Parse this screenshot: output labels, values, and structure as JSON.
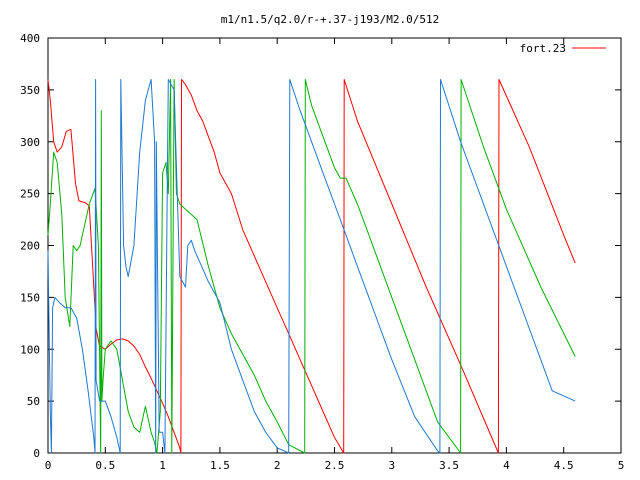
{
  "chart_data": {
    "type": "line",
    "title": "m1/n1.5/q2.0/r-+.37-j193/M2.0/512",
    "xlim": [
      0,
      5
    ],
    "ylim": [
      0,
      400
    ],
    "xticks": [
      0,
      0.5,
      1,
      1.5,
      2,
      2.5,
      3,
      3.5,
      4,
      4.5,
      5
    ],
    "xtick_labels": [
      "0",
      "0.5",
      "1",
      "1.5",
      "2",
      "2.5",
      "3",
      "3.5",
      "4",
      "4.5",
      "5"
    ],
    "yticks": [
      0,
      50,
      100,
      150,
      200,
      250,
      300,
      350,
      400
    ],
    "ytick_labels": [
      "0",
      "50",
      "100",
      "150",
      "200",
      "250",
      "300",
      "350",
      "400"
    ],
    "grid": false,
    "legend_position": "top-right",
    "series": [
      {
        "name": "fort.23",
        "color": "#ff0000",
        "x": [
          0,
          0.02,
          0.05,
          0.08,
          0.12,
          0.16,
          0.2,
          0.24,
          0.27,
          0.3,
          0.33,
          0.36,
          0.4,
          0.41,
          0.42,
          0.45,
          0.5,
          0.55,
          0.6,
          0.65,
          0.7,
          0.75,
          0.8,
          0.85,
          0.9,
          0.95,
          1.0,
          1.05,
          1.1,
          1.15,
          1.16,
          1.165,
          1.2,
          1.25,
          1.3,
          1.35,
          1.4,
          1.45,
          1.5,
          1.6,
          1.7,
          1.8,
          1.9,
          2.0,
          2.1,
          2.2,
          2.3,
          2.4,
          2.5,
          2.58,
          2.585,
          2.7,
          3.0,
          3.3,
          3.6,
          3.93,
          3.935,
          4.2,
          4.5,
          4.6
        ],
        "y": [
          360,
          340,
          300,
          290,
          295,
          310,
          312,
          260,
          243,
          242,
          241,
          238,
          160,
          140,
          120,
          103,
          100,
          105,
          109,
          110,
          108,
          103,
          95,
          83,
          72,
          60,
          48,
          35,
          20,
          5,
          0,
          360,
          355,
          345,
          330,
          320,
          305,
          290,
          270,
          250,
          215,
          190,
          165,
          140,
          115,
          90,
          65,
          40,
          15,
          0,
          360,
          320,
          240,
          160,
          85,
          0,
          360,
          295,
          210,
          183
        ]
      },
      {
        "name": "",
        "color": "#00b000",
        "x": [
          0,
          0.02,
          0.05,
          0.08,
          0.12,
          0.15,
          0.19,
          0.22,
          0.25,
          0.28,
          0.32,
          0.36,
          0.41,
          0.44,
          0.46,
          0.465,
          0.47,
          0.48,
          0.5,
          0.55,
          0.6,
          0.65,
          0.7,
          0.75,
          0.8,
          0.85,
          0.9,
          0.93,
          0.95,
          0.98,
          1.0,
          1.03,
          1.05,
          1.07,
          1.08,
          1.1,
          1.12,
          1.15,
          1.2,
          1.3,
          1.4,
          1.5,
          1.6,
          1.7,
          1.8,
          1.9,
          2.0,
          2.1,
          2.24,
          2.245,
          2.3,
          2.4,
          2.5,
          2.55,
          2.6,
          2.7,
          2.8,
          3.0,
          3.2,
          3.4,
          3.6,
          3.605,
          3.8,
          4.0,
          4.3,
          4.6
        ],
        "y": [
          210,
          240,
          290,
          280,
          230,
          150,
          122,
          200,
          195,
          200,
          220,
          240,
          255,
          200,
          0,
          330,
          50,
          70,
          100,
          108,
          100,
          70,
          40,
          25,
          20,
          45,
          20,
          10,
          0,
          40,
          270,
          280,
          250,
          360,
          0,
          360,
          250,
          240,
          235,
          225,
          180,
          140,
          115,
          95,
          75,
          50,
          30,
          8,
          0,
          360,
          335,
          305,
          275,
          265,
          265,
          240,
          210,
          150,
          90,
          30,
          0,
          360,
          295,
          235,
          160,
          93
        ]
      },
      {
        "name": "",
        "color": "#1f78d0",
        "x": [
          0,
          0.01,
          0.02,
          0.03,
          0.04,
          0.06,
          0.1,
          0.15,
          0.2,
          0.25,
          0.3,
          0.35,
          0.4,
          0.41,
          0.415,
          0.42,
          0.45,
          0.5,
          0.55,
          0.6,
          0.63,
          0.635,
          0.66,
          0.68,
          0.7,
          0.75,
          0.8,
          0.85,
          0.9,
          0.93,
          0.94,
          0.945,
          0.97,
          1.0,
          1.02,
          1.04,
          1.05,
          1.1,
          1.15,
          1.2,
          1.22,
          1.25,
          1.28,
          1.32,
          1.36,
          1.4,
          1.5,
          1.6,
          1.7,
          1.8,
          1.9,
          2.0,
          2.1,
          2.11,
          2.2,
          2.3,
          2.4,
          2.5,
          2.6,
          2.7,
          2.8,
          2.9,
          3.0,
          3.2,
          3.4,
          3.42,
          3.425,
          3.6,
          3.8,
          4.0,
          4.2,
          4.4,
          4.6
        ],
        "y": [
          195,
          120,
          40,
          0,
          140,
          150,
          145,
          140,
          140,
          130,
          100,
          60,
          15,
          0,
          360,
          70,
          50,
          50,
          35,
          15,
          0,
          360,
          200,
          180,
          170,
          200,
          290,
          340,
          360,
          300,
          0,
          300,
          20,
          20,
          0,
          250,
          360,
          350,
          170,
          160,
          200,
          205,
          195,
          185,
          175,
          165,
          145,
          100,
          70,
          40,
          20,
          5,
          0,
          360,
          330,
          300,
          270,
          240,
          210,
          180,
          150,
          120,
          90,
          35,
          2,
          0,
          360,
          300,
          240,
          180,
          120,
          60,
          50
        ]
      }
    ]
  }
}
